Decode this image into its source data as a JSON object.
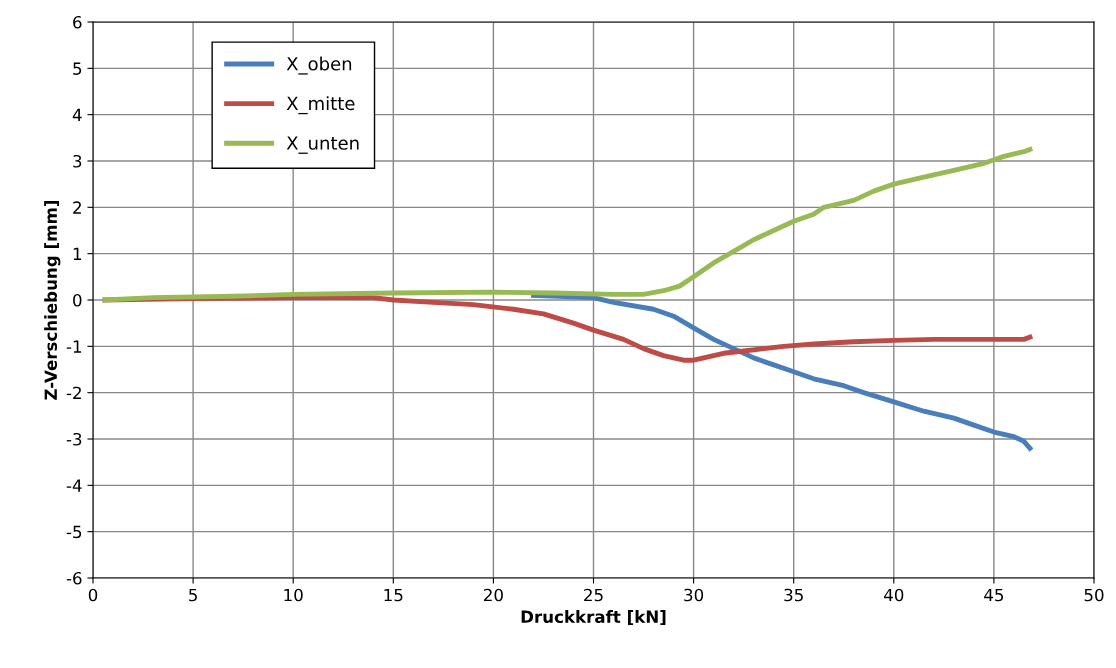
{
  "chart_data": {
    "type": "line",
    "xlabel": "Druckkraft [kN]",
    "ylabel": "Z-Verschiebung [mm]",
    "xlim": [
      0,
      50
    ],
    "ylim": [
      -6,
      6
    ],
    "xticks": [
      0,
      5,
      10,
      15,
      20,
      25,
      30,
      35,
      40,
      45,
      50
    ],
    "yticks": [
      -6,
      -5,
      -4,
      -3,
      -2,
      -1,
      0,
      1,
      2,
      3,
      4,
      5,
      6
    ],
    "grid": true,
    "legend": "top left",
    "marker": "none",
    "line_style": "solid",
    "series": [
      {
        "name": "X_oben",
        "color": "#4a7ebb",
        "x": [
          22,
          25,
          26,
          28,
          29,
          30,
          31,
          32,
          33,
          34,
          35,
          36,
          37.5,
          38.5,
          40,
          41.5,
          43,
          44,
          45,
          46,
          46.5,
          46.8
        ],
        "values": [
          0.1,
          0.05,
          -0.05,
          -0.2,
          -0.35,
          -0.6,
          -0.85,
          -1.05,
          -1.25,
          -1.4,
          -1.55,
          -1.7,
          -1.85,
          -2.0,
          -2.2,
          -2.4,
          -2.55,
          -2.7,
          -2.85,
          -2.95,
          -3.05,
          -3.2
        ]
      },
      {
        "name": "X_mitte",
        "color": "#be4b48",
        "x": [
          0.6,
          5,
          10,
          14,
          15,
          17,
          19,
          21,
          22.5,
          24,
          25,
          26.5,
          27.5,
          28.5,
          29.5,
          30,
          30.5,
          31.5,
          32.5,
          33.5,
          34.5,
          36,
          38,
          40,
          42,
          45,
          46.5,
          46.8
        ],
        "values": [
          0,
          0.03,
          0.05,
          0.05,
          0,
          -0.05,
          -0.1,
          -0.2,
          -0.3,
          -0.5,
          -0.65,
          -0.85,
          -1.05,
          -1.2,
          -1.3,
          -1.3,
          -1.25,
          -1.15,
          -1.1,
          -1.05,
          -1.0,
          -0.95,
          -0.9,
          -0.87,
          -0.85,
          -0.85,
          -0.85,
          -0.8
        ]
      },
      {
        "name": "X_unten",
        "color": "#98b954",
        "x": [
          0.6,
          3,
          7,
          10,
          15,
          20,
          23,
          26,
          27.5,
          28.5,
          29.3,
          30,
          31,
          32,
          33,
          34,
          35,
          36,
          36.5,
          38,
          39,
          40,
          41.5,
          43,
          44.5,
          45.5,
          46.5,
          46.8
        ],
        "values": [
          0,
          0.05,
          0.08,
          0.12,
          0.15,
          0.17,
          0.15,
          0.12,
          0.12,
          0.2,
          0.3,
          0.5,
          0.8,
          1.05,
          1.3,
          1.5,
          1.7,
          1.85,
          2.0,
          2.15,
          2.35,
          2.5,
          2.65,
          2.8,
          2.95,
          3.1,
          3.2,
          3.25
        ]
      }
    ]
  }
}
